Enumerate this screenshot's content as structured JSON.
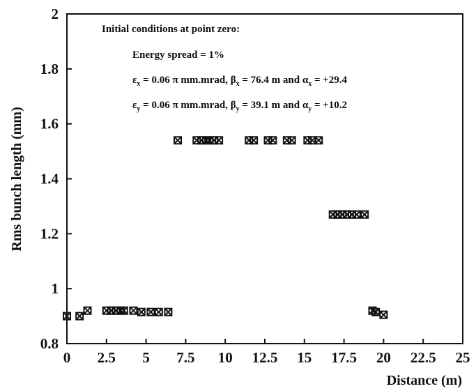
{
  "chart_data": {
    "type": "scatter",
    "title": "",
    "xlabel": "Distance (m)",
    "ylabel": "Rms bunch length (mm)",
    "xlim": [
      0,
      25
    ],
    "ylim": [
      0.8,
      2
    ],
    "x_ticks": [
      "0",
      "2.5",
      "5",
      "7.5",
      "10",
      "12.5",
      "15",
      "17.5",
      "20",
      "22.5",
      "25"
    ],
    "y_ticks": [
      "0.8",
      "1",
      "1.2",
      "1.4",
      "1.6",
      "1.8",
      "2"
    ],
    "grid": false,
    "marker": "x-square",
    "annotations": {
      "heading": "Initial conditions at point zero:",
      "energy_spread": "Energy spread = 1%",
      "line_x": {
        "eps_symbol": "ε",
        "eps_sub": "x",
        "eps_val": " = 0.06 π mm.mrad, ",
        "beta_symbol": "β",
        "beta_sub": "x",
        "beta_val": " = 76.4 m and ",
        "alpha_symbol": "α",
        "alpha_sub": "x",
        "alpha_val": " = +29.4"
      },
      "line_y": {
        "eps_symbol": "ε",
        "eps_sub": "y",
        "eps_val": " = 0.06 π mm.mrad, ",
        "beta_symbol": "β",
        "beta_sub": "y",
        "beta_val": " = 39.1 m and ",
        "alpha_symbol": "α",
        "alpha_sub": "y",
        "alpha_val": " = +10.2"
      }
    },
    "series": [
      {
        "points": [
          [
            0.0,
            0.9
          ],
          [
            0.8,
            0.9
          ],
          [
            1.3,
            0.92
          ],
          [
            2.5,
            0.92
          ],
          [
            2.8,
            0.92
          ],
          [
            3.1,
            0.92
          ],
          [
            3.4,
            0.92
          ],
          [
            3.6,
            0.92
          ],
          [
            4.2,
            0.92
          ],
          [
            4.7,
            0.915
          ],
          [
            5.3,
            0.915
          ],
          [
            5.8,
            0.915
          ],
          [
            6.4,
            0.915
          ],
          [
            7.0,
            1.54
          ],
          [
            8.2,
            1.54
          ],
          [
            8.5,
            1.54
          ],
          [
            8.8,
            1.54
          ],
          [
            9.0,
            1.54
          ],
          [
            9.3,
            1.54
          ],
          [
            9.6,
            1.54
          ],
          [
            11.5,
            1.54
          ],
          [
            11.8,
            1.54
          ],
          [
            12.7,
            1.54
          ],
          [
            13.0,
            1.54
          ],
          [
            13.9,
            1.54
          ],
          [
            14.2,
            1.54
          ],
          [
            15.2,
            1.54
          ],
          [
            15.5,
            1.54
          ],
          [
            15.9,
            1.54
          ],
          [
            16.8,
            1.27
          ],
          [
            17.1,
            1.27
          ],
          [
            17.4,
            1.27
          ],
          [
            17.7,
            1.27
          ],
          [
            18.0,
            1.27
          ],
          [
            18.3,
            1.27
          ],
          [
            18.8,
            1.27
          ],
          [
            19.3,
            0.92
          ],
          [
            19.5,
            0.915
          ],
          [
            20.0,
            0.905
          ]
        ]
      }
    ]
  }
}
